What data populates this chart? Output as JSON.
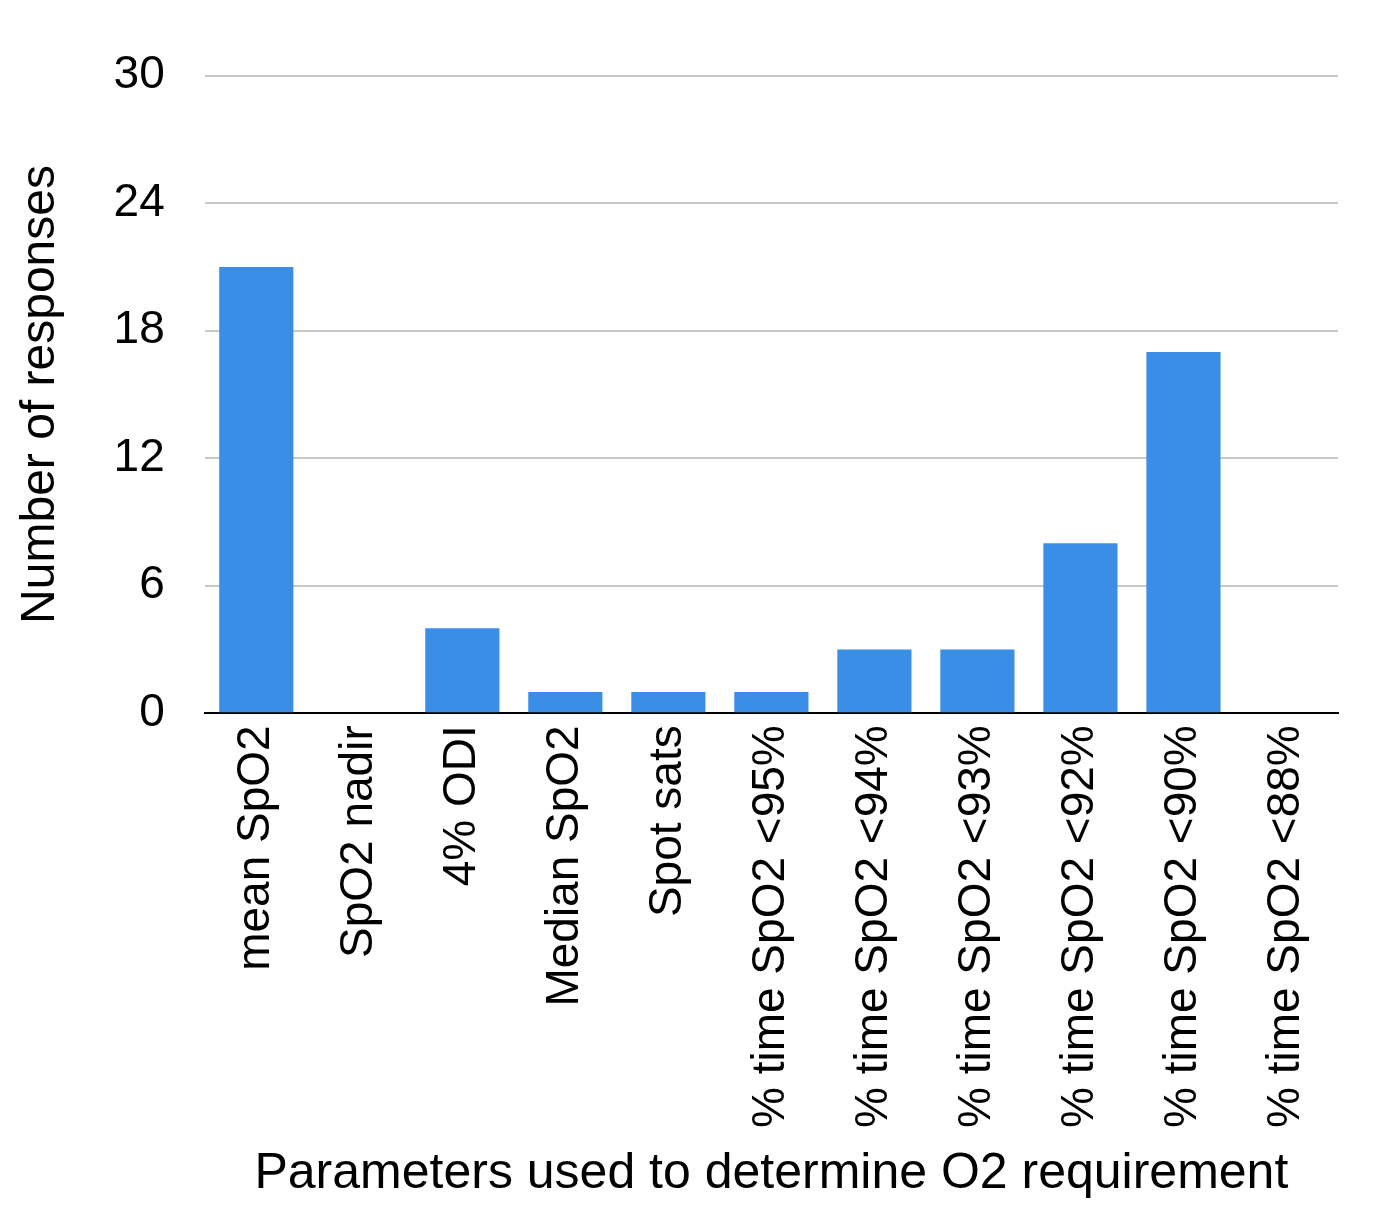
{
  "chart_data": {
    "type": "bar",
    "xlabel": "Parameters used to determine O2 requirement",
    "ylabel": "Number of responses",
    "categories": [
      "mean SpO2",
      "SpO2 nadir",
      "4% ODI",
      "Median SpO2",
      "Spot sats",
      "% time SpO2 <95%",
      "% time SpO2 <94%",
      "% time SpO2 <93%",
      "% time SpO2 <92%",
      "% time SpO2 <90%",
      "% time SpO2 <88%"
    ],
    "values": [
      21,
      0,
      4,
      1,
      1,
      1,
      3,
      3,
      8,
      17,
      0
    ],
    "color": "#3a8ee6",
    "ylim": [
      0,
      30
    ],
    "yticks": [
      0,
      6,
      12,
      18,
      24,
      30
    ],
    "grid": "y",
    "legend": false
  }
}
